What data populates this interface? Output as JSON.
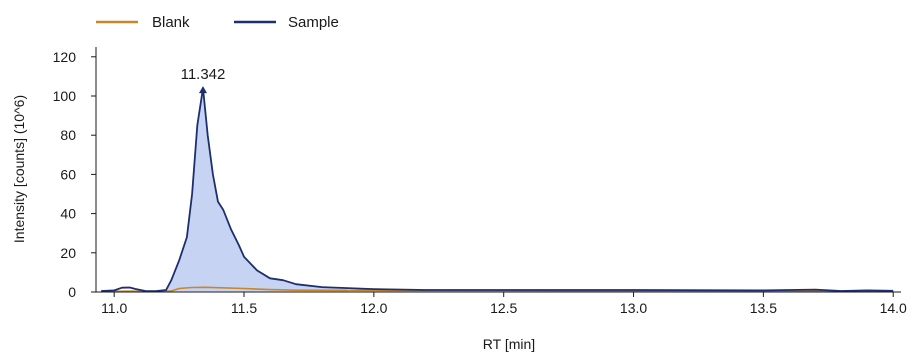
{
  "chart_data": {
    "type": "line",
    "title": "",
    "xlabel": "RT [min]",
    "ylabel": "Intensity [counts] (10^6)",
    "xlim": [
      10.93,
      14.03
    ],
    "ylim": [
      0,
      125
    ],
    "xticks": [
      11.0,
      11.5,
      12.0,
      12.5,
      13.0,
      13.5,
      14.0
    ],
    "xtick_labels": [
      "11.0",
      "11.5",
      "12.0",
      "12.5",
      "13.0",
      "13.5",
      "14.0"
    ],
    "yticks": [
      0,
      20,
      40,
      60,
      80,
      100,
      120
    ],
    "ytick_labels": [
      "0",
      "20",
      "40",
      "60",
      "80",
      "100",
      "120"
    ],
    "grid": false,
    "legend_position": "top-left",
    "series": [
      {
        "name": "Blank",
        "color": "#c8862a",
        "x": [
          10.95,
          11.05,
          11.15,
          11.22,
          11.25,
          11.3,
          11.35,
          11.4,
          11.5,
          11.6,
          11.7,
          12.0,
          12.5,
          13.0,
          13.5,
          14.0
        ],
        "y": [
          0.3,
          0.4,
          0.4,
          0.5,
          1.8,
          2.3,
          2.4,
          2.2,
          1.8,
          1.2,
          0.9,
          0.8,
          0.7,
          0.6,
          0.5,
          0.4
        ]
      },
      {
        "name": "Sample",
        "color": "#1c2f6e",
        "fill": "#c7d3f2",
        "x": [
          10.95,
          11.0,
          11.03,
          11.06,
          11.08,
          11.12,
          11.16,
          11.2,
          11.22,
          11.25,
          11.28,
          11.3,
          11.32,
          11.342,
          11.36,
          11.38,
          11.4,
          11.42,
          11.45,
          11.48,
          11.5,
          11.55,
          11.6,
          11.65,
          11.7,
          11.8,
          11.9,
          12.0,
          12.2,
          12.5,
          13.0,
          13.5,
          13.7,
          13.8,
          13.9,
          14.0
        ],
        "y": [
          0.5,
          0.8,
          2.2,
          2.3,
          1.6,
          0.5,
          0.4,
          1.0,
          6.0,
          16.0,
          28.0,
          50.0,
          85.0,
          104.0,
          80.0,
          60.0,
          46.0,
          42.0,
          32.0,
          24.0,
          18.0,
          11.0,
          7.0,
          6.0,
          4.0,
          2.5,
          2.0,
          1.5,
          1.0,
          1.0,
          1.0,
          0.8,
          1.2,
          0.5,
          0.8,
          0.6
        ]
      }
    ],
    "annotations": [
      {
        "text": "11.342",
        "x": 11.342,
        "y": 104.0,
        "series": "Sample"
      }
    ]
  }
}
